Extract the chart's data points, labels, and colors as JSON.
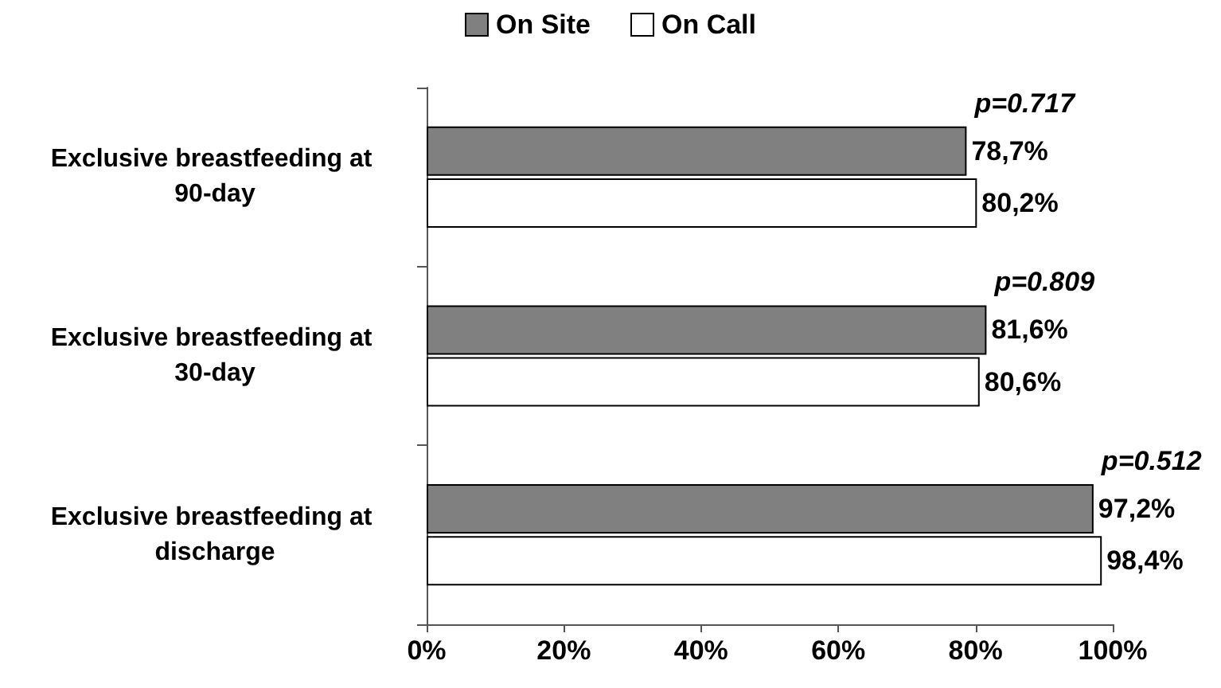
{
  "chart_data": {
    "type": "bar",
    "orientation": "horizontal",
    "categories": [
      "Exclusive breastfeeding at 90-day",
      "Exclusive breastfeeding at 30-day",
      "Exclusive breastfeeding at discharge"
    ],
    "series": [
      {
        "name": "On Site",
        "color": "#808080",
        "values": [
          78.7,
          81.6,
          97.2
        ],
        "value_labels": [
          "78,7%",
          "81,6%",
          "97,2%"
        ]
      },
      {
        "name": "On Call",
        "color": "#ffffff",
        "values": [
          80.2,
          80.6,
          98.4
        ],
        "value_labels": [
          "80,2%",
          "80,6%",
          "98,4%"
        ]
      }
    ],
    "xlim": [
      0,
      100
    ],
    "xticks": [
      {
        "value": 0,
        "label": "0%"
      },
      {
        "value": 20,
        "label": "20%"
      },
      {
        "value": 40,
        "label": "40%"
      },
      {
        "value": 60,
        "label": "60%"
      },
      {
        "value": 80,
        "label": "80%"
      },
      {
        "value": 100,
        "label": "100%"
      }
    ],
    "annotations": [
      {
        "text": "p=0.717",
        "x": 78.7,
        "y": "Exclusive breastfeeding at 90-day"
      },
      {
        "text": "p=0.809",
        "x": 81.6,
        "y": "Exclusive breastfeeding at 30-day"
      },
      {
        "text": "p=0.512",
        "x": 97.2,
        "y": "Exclusive breastfeeding at discharge"
      }
    ],
    "legend": "top",
    "grid": false
  }
}
